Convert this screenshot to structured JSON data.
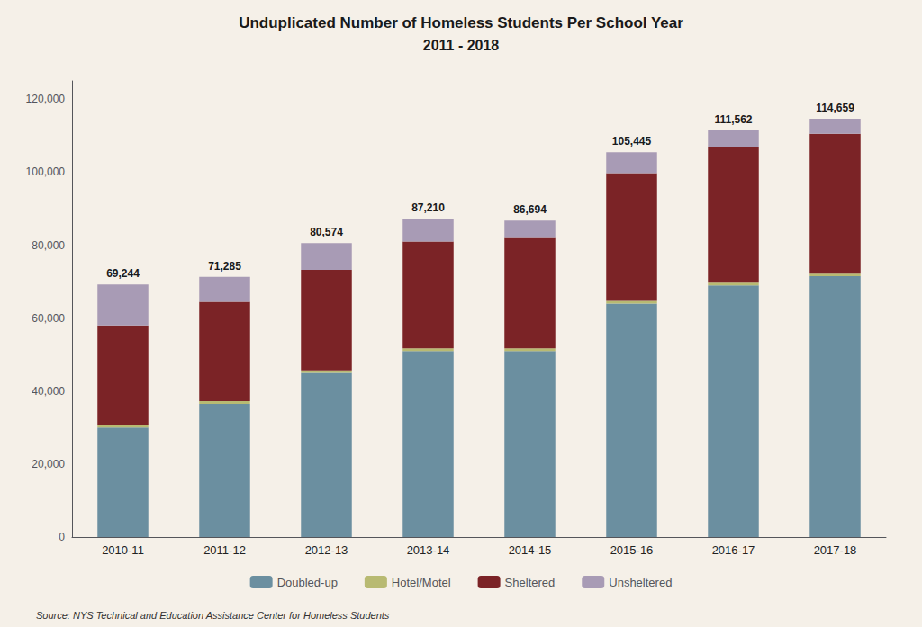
{
  "chart_data": {
    "type": "bar",
    "title": "Unduplicated Number of Homeless Students Per School Year",
    "subtitle": "2011 - 2018",
    "source": "Source: NYS Technical and Education Assistance Center for Homeless Students",
    "categories": [
      "2010-11",
      "2011-12",
      "2012-13",
      "2013-14",
      "2014-15",
      "2015-16",
      "2016-17",
      "2017-18"
    ],
    "series": [
      {
        "name": "Doubled-up",
        "color": "#6b8fa0",
        "values": [
          30000,
          36500,
          45000,
          51000,
          51000,
          64000,
          69000,
          71500
        ]
      },
      {
        "name": "Hotel/Motel",
        "color": "#b8ba72",
        "values": [
          700,
          700,
          700,
          700,
          700,
          700,
          700,
          700
        ]
      },
      {
        "name": "Sheltered",
        "color": "#7b2326",
        "values": [
          27300,
          27300,
          27500,
          29300,
          30300,
          35000,
          37300,
          38300
        ]
      },
      {
        "name": "Unsheltered",
        "color": "#a89bb5",
        "values": [
          11244,
          6785,
          7374,
          6210,
          4694,
          5745,
          4562,
          4159
        ]
      }
    ],
    "totals": [
      69244,
      71285,
      80574,
      87210,
      86694,
      105445,
      111562,
      114659
    ],
    "total_labels": [
      "69,244",
      "71,285",
      "80,574",
      "87,210",
      "86,694",
      "105,445",
      "111,562",
      "114,659"
    ],
    "stacked": true,
    "ylim": [
      0,
      125000
    ],
    "yticks": [
      0,
      {
        "value": 20000,
        "label": "20,000"
      },
      {
        "value": 40000,
        "label": "40,000"
      },
      {
        "value": 60000,
        "label": "60,000"
      },
      {
        "value": 80000,
        "label": "80,000"
      },
      {
        "value": 100000,
        "label": "100,000"
      },
      {
        "value": 120000,
        "label": "120,000"
      }
    ],
    "grid": false,
    "legend": "bottom",
    "background_color": "#f5f0e8"
  }
}
